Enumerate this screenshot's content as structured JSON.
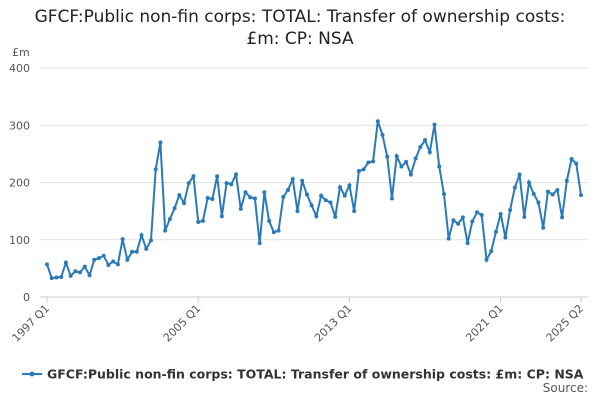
{
  "chart_data": {
    "type": "line",
    "title": "GFCF:Public non-fin corps: TOTAL: Transfer of ownership costs: £m: CP: NSA",
    "ylabel": "£m",
    "source": "Source:",
    "categories": [
      "1997 Q1",
      null,
      null,
      null,
      null,
      null,
      null,
      null,
      null,
      null,
      null,
      null,
      null,
      null,
      null,
      null,
      null,
      null,
      null,
      null,
      null,
      null,
      null,
      null,
      null,
      null,
      null,
      null,
      null,
      null,
      null,
      null,
      "2005 Q1",
      null,
      null,
      null,
      null,
      null,
      null,
      null,
      null,
      null,
      null,
      null,
      null,
      null,
      null,
      null,
      null,
      null,
      null,
      null,
      null,
      null,
      null,
      null,
      null,
      null,
      null,
      null,
      null,
      null,
      null,
      null,
      "2013 Q1",
      null,
      null,
      null,
      null,
      null,
      null,
      null,
      null,
      null,
      null,
      null,
      null,
      null,
      null,
      null,
      null,
      null,
      null,
      null,
      null,
      null,
      null,
      null,
      null,
      null,
      null,
      null,
      null,
      null,
      null,
      null,
      "2021 Q1",
      null,
      null,
      null,
      null,
      null,
      null,
      null,
      null,
      null,
      null,
      null,
      null,
      null,
      null,
      null,
      null,
      "2025 Q2"
    ],
    "series": [
      {
        "name": "GFCF:Public non-fin corps: TOTAL: Transfer of ownership costs: £m: CP: NSA",
        "color": "#2a7ab8",
        "values": [
          57,
          33,
          34,
          35,
          60,
          37,
          45,
          43,
          53,
          38,
          65,
          68,
          72,
          56,
          62,
          57,
          101,
          65,
          79,
          79,
          108,
          84,
          99,
          223,
          270,
          116,
          136,
          155,
          178,
          164,
          199,
          211,
          131,
          133,
          173,
          171,
          211,
          141,
          199,
          197,
          214,
          154,
          183,
          174,
          172,
          94,
          183,
          133,
          113,
          116,
          175,
          187,
          206,
          150,
          203,
          179,
          160,
          141,
          177,
          169,
          165,
          140,
          192,
          177,
          195,
          150,
          220,
          223,
          235,
          237,
          307,
          283,
          245,
          172,
          246,
          228,
          236,
          214,
          242,
          262,
          274,
          253,
          301,
          228,
          180,
          102,
          134,
          128,
          139,
          94,
          132,
          148,
          143,
          65,
          80,
          114,
          145,
          104,
          152,
          191,
          214,
          140,
          200,
          180,
          165,
          121,
          184,
          179,
          187,
          139,
          203,
          241,
          233,
          178
        ]
      }
    ],
    "ylim": [
      0,
      400
    ],
    "yticks": [
      0,
      100,
      200,
      300,
      400
    ],
    "grid": true
  }
}
